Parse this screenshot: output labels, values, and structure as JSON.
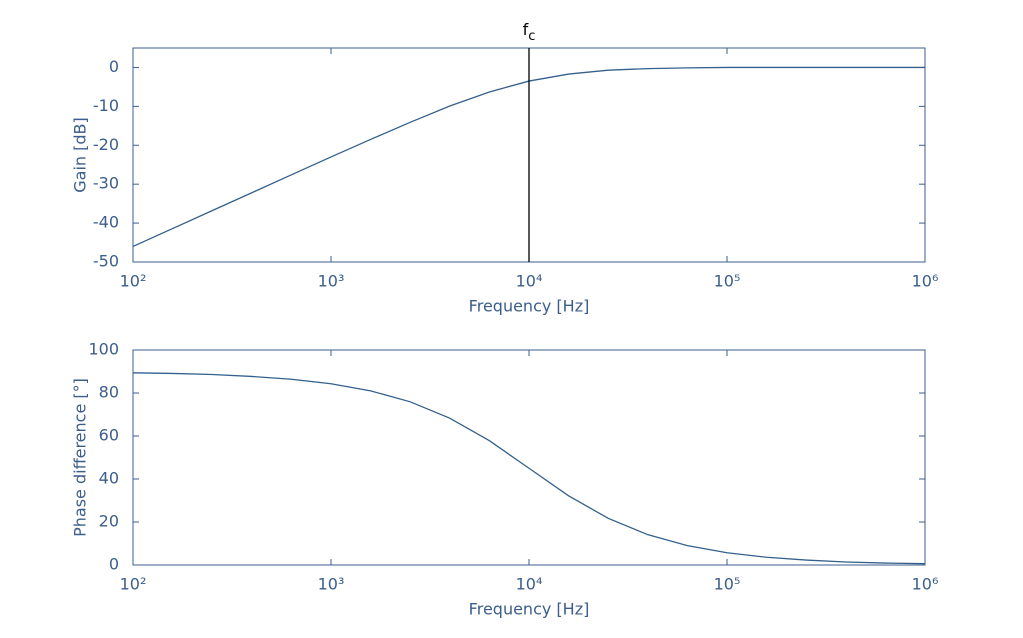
{
  "chart_data": [
    {
      "type": "line",
      "xlabel": "Frequency [Hz]",
      "ylabel": "Gain [dB]",
      "log_x": true,
      "x": [
        100,
        158.5,
        251.2,
        398.1,
        631,
        1000,
        1585,
        2512,
        3981,
        6310,
        10000,
        15849,
        25119,
        39811,
        63096,
        100000,
        158489,
        251189,
        398107,
        630957,
        1000000
      ],
      "series": [
        {
          "color": "#34608d",
          "values": [
            -46.0,
            -41.4,
            -36.8,
            -32.2,
            -27.6,
            -23.0,
            -18.5,
            -14.1,
            -9.9,
            -6.3,
            -3.5,
            -1.7,
            -0.7,
            -0.3,
            -0.1,
            0.0,
            0.0,
            0.0,
            0.0,
            0.0,
            0.0
          ]
        }
      ],
      "xlim": [
        100,
        1000000
      ],
      "xticks": [
        {
          "value": 100,
          "label": "10²"
        },
        {
          "value": 1000,
          "label": "10³"
        },
        {
          "value": 10000,
          "label": "10⁴"
        },
        {
          "value": 100000,
          "label": "10⁵"
        },
        {
          "value": 1000000,
          "label": "10⁶"
        }
      ],
      "ylim": [
        -50,
        5
      ],
      "yticks": [
        -50,
        -40,
        -30,
        -20,
        -10,
        0
      ],
      "vline": {
        "x": 10000,
        "label": "fc",
        "color": "#000000"
      }
    },
    {
      "type": "line",
      "xlabel": "Frequency [Hz]",
      "ylabel": "Phase difference [°]",
      "log_x": true,
      "x": [
        100,
        158.5,
        251.2,
        398.1,
        631,
        1000,
        1585,
        2512,
        3981,
        6310,
        10000,
        15849,
        25119,
        39811,
        63096,
        100000,
        158489,
        251189,
        398107,
        630957,
        1000000
      ],
      "series": [
        {
          "color": "#34608d",
          "values": [
            89.4,
            89.1,
            88.6,
            87.7,
            86.4,
            84.3,
            81.0,
            75.9,
            68.3,
            57.8,
            45.0,
            32.2,
            21.7,
            14.1,
            9.0,
            5.7,
            3.6,
            2.3,
            1.4,
            0.9,
            0.6
          ]
        }
      ],
      "xlim": [
        100,
        1000000
      ],
      "xticks": [
        {
          "value": 100,
          "label": "10²"
        },
        {
          "value": 1000,
          "label": "10³"
        },
        {
          "value": 10000,
          "label": "10⁴"
        },
        {
          "value": 100000,
          "label": "10⁵"
        },
        {
          "value": 1000000,
          "label": "10⁶"
        }
      ],
      "ylim": [
        0,
        100
      ],
      "yticks": [
        0,
        20,
        40,
        60,
        80,
        100
      ]
    }
  ]
}
